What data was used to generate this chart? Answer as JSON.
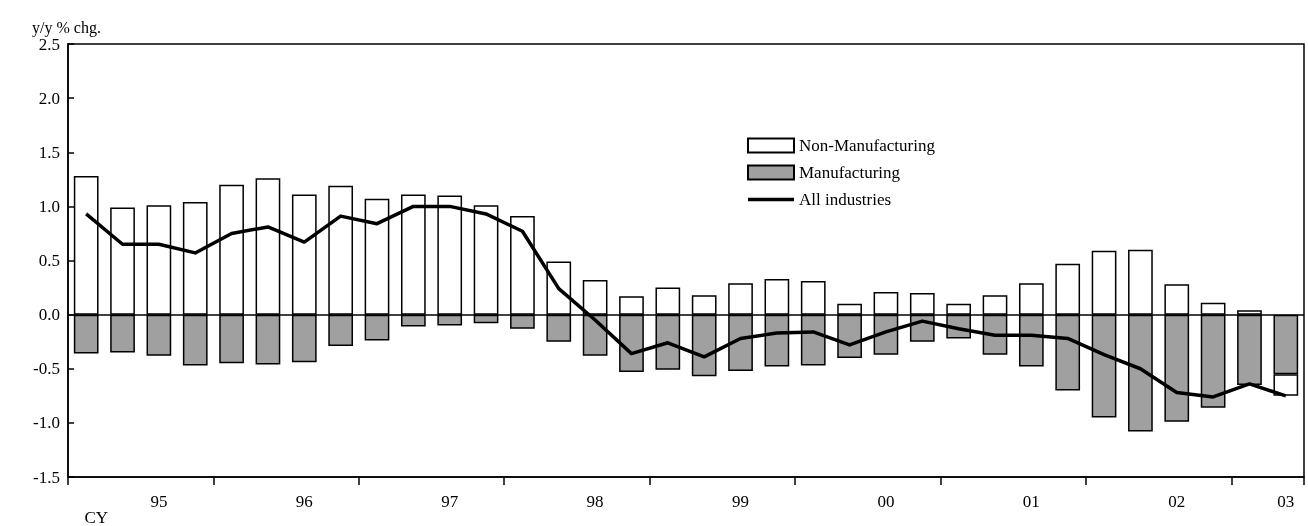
{
  "chart_data": {
    "type": "bar",
    "stacked": true,
    "ylabel": "y/y % chg.",
    "xlabel": "CY",
    "categories": [
      null,
      null,
      "95",
      null,
      null,
      null,
      "96",
      null,
      null,
      null,
      "97",
      null,
      null,
      null,
      "98",
      null,
      null,
      null,
      "99",
      null,
      null,
      null,
      "00",
      null,
      null,
      null,
      "01",
      null,
      null,
      null,
      "02",
      null,
      null,
      "03"
    ],
    "series": [
      {
        "name": "Manufacturing",
        "color": "#a0a0a0",
        "values": [
          -0.36,
          -0.35,
          -0.38,
          -0.47,
          -0.45,
          -0.46,
          -0.44,
          -0.29,
          -0.24,
          -0.11,
          -0.1,
          -0.08,
          -0.13,
          -0.25,
          -0.38,
          -0.53,
          -0.51,
          -0.57,
          -0.52,
          -0.48,
          -0.47,
          -0.4,
          -0.37,
          -0.25,
          -0.22,
          -0.37,
          -0.48,
          -0.7,
          -0.95,
          -1.08,
          -0.99,
          -0.86,
          -0.65,
          -0.55
        ]
      },
      {
        "name": "Non-Manufacturing",
        "color": "#ffffff",
        "values": [
          1.28,
          0.99,
          1.01,
          1.04,
          1.2,
          1.26,
          1.11,
          1.19,
          1.07,
          1.11,
          1.1,
          1.01,
          0.91,
          0.49,
          0.32,
          0.17,
          0.25,
          0.18,
          0.29,
          0.33,
          0.31,
          0.1,
          0.21,
          0.2,
          0.1,
          0.18,
          0.29,
          0.47,
          0.59,
          0.6,
          0.28,
          0.11,
          0.04,
          -0.2
        ]
      },
      {
        "name": "All industries",
        "type": "line",
        "color": "#000000",
        "values": [
          0.93,
          0.65,
          0.65,
          0.57,
          0.75,
          0.81,
          0.67,
          0.91,
          0.84,
          1.0,
          1.0,
          0.93,
          0.77,
          0.24,
          -0.05,
          -0.36,
          -0.26,
          -0.39,
          -0.22,
          -0.17,
          -0.16,
          -0.28,
          -0.16,
          -0.06,
          -0.13,
          -0.19,
          -0.19,
          -0.22,
          -0.37,
          -0.5,
          -0.72,
          -0.76,
          -0.64,
          -0.75
        ]
      }
    ],
    "ylim": [
      -1.5,
      2.5
    ],
    "yticks": [
      -1.5,
      {
        "value": -1,
        "label": "-1.0"
      },
      -0.5,
      {
        "value": 0,
        "label": "0.0"
      },
      0.5,
      {
        "value": 1,
        "label": "1.0"
      },
      1.5,
      {
        "value": 2,
        "label": "2.0"
      },
      2.5
    ],
    "ref_lines": [
      {
        "axis": "y",
        "value": 0
      }
    ],
    "legend": "top right",
    "marker": "none"
  }
}
